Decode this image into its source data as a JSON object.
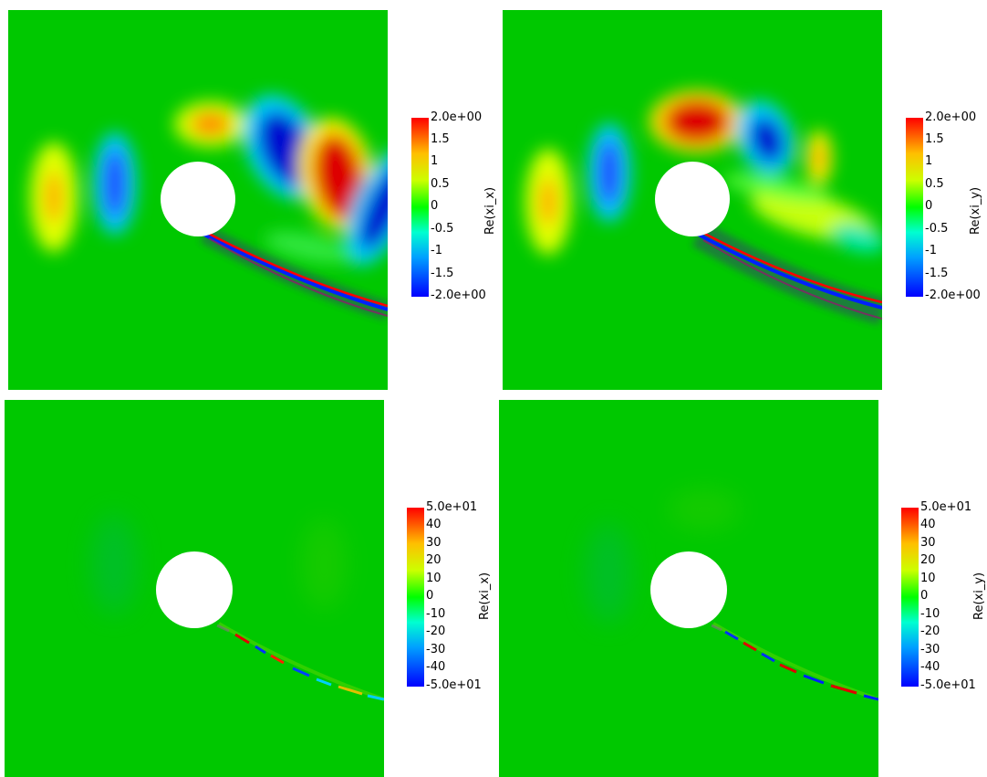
{
  "colors": {
    "background": "#00c800",
    "positive": "#dd0000",
    "negative": "#0000cc",
    "obstacle": "#ffffff"
  },
  "colorbars": [
    {
      "title": "Re(xi_x)",
      "ticks": [
        "2.0e+00",
        "1.5",
        "1",
        "0.5",
        "0",
        "-0.5",
        "-1",
        "-1.5",
        "-2.0e+00"
      ]
    },
    {
      "title": "Re(xi_y)",
      "ticks": [
        "2.0e+00",
        "1.5",
        "1",
        "0.5",
        "0",
        "-0.5",
        "-1",
        "-1.5",
        "-2.0e+00"
      ]
    },
    {
      "title": "Re(xi_x)",
      "ticks": [
        "5.0e+01",
        "40",
        "30",
        "20",
        "10",
        "0",
        "-10",
        "-20",
        "-30",
        "-40",
        "-5.0e+01"
      ]
    },
    {
      "title": "Re(xi_y)",
      "ticks": [
        "5.0e+01",
        "40",
        "30",
        "20",
        "10",
        "0",
        "-10",
        "-20",
        "-30",
        "-40",
        "-5.0e+01"
      ]
    }
  ]
}
